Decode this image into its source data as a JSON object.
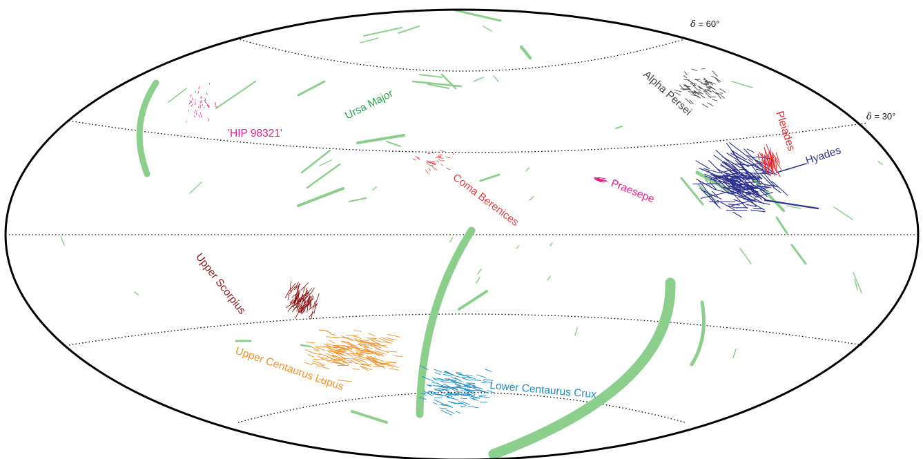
{
  "map": {
    "projection": "all-sky elliptical (Aitoff/Hammer-type)",
    "background": "#ffffff",
    "grid": {
      "style": "dotted",
      "labels": [
        {
          "id": "dec60",
          "prefix": "δ",
          "text": " = 60°"
        },
        {
          "id": "dec30",
          "prefix": "δ",
          "text": " = 30°"
        }
      ]
    },
    "colors": {
      "streams": "#8ccf8c",
      "ursa_major": "#2aa34a",
      "alpha_persei": "#444444",
      "pleiades": "#e8262c",
      "hyades": "#2b2f8f",
      "praesepe": "#e21e8c",
      "coma_berenices": "#e04040",
      "hip98321": "#e21e8c",
      "upper_scorpius": "#8b1a1a",
      "upper_centaurus_lupus": "#f0922a",
      "lower_centaurus_crux": "#1a8cc8"
    },
    "clusters": [
      {
        "id": "ursa-major",
        "label": "Ursa Major",
        "color": "#2aa34a"
      },
      {
        "id": "alpha-persei",
        "label": "Alpha Persei",
        "color": "#444444"
      },
      {
        "id": "pleiades",
        "label": "Pleiades",
        "color": "#e8262c"
      },
      {
        "id": "hyades",
        "label": "Hyades",
        "color": "#2b2f8f"
      },
      {
        "id": "hip-98321",
        "label": "'HIP 98321'",
        "color": "#e21e8c"
      },
      {
        "id": "coma-berenices",
        "label": "Coma Berenices",
        "color": "#e04040"
      },
      {
        "id": "praesepe",
        "label": "Praesepe",
        "color": "#e21e8c"
      },
      {
        "id": "upper-scorpius",
        "label": "Upper Scorpius",
        "color": "#8b1a1a"
      },
      {
        "id": "upper-centaurus-lupus",
        "label": "Upper Centaurus Lupus",
        "color": "#f0922a"
      },
      {
        "id": "lower-centaurus-crux",
        "label": "Lower Centaurus Crux",
        "color": "#1a8cc8"
      }
    ]
  }
}
